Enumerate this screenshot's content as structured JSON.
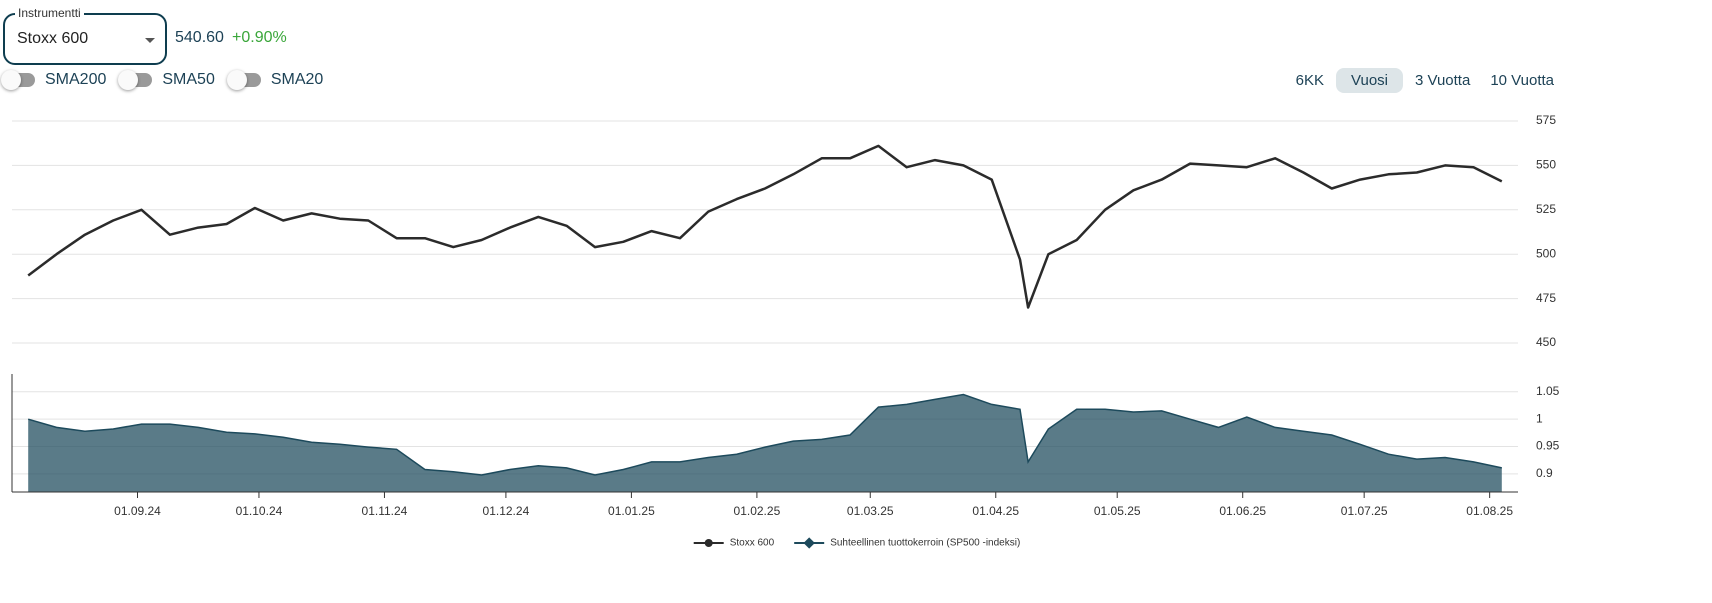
{
  "ui": {
    "instrument_label": "Instrumentti",
    "instrument": "Stoxx 600",
    "price": "540.60",
    "change": "+0.90%",
    "toggles": [
      "SMA200",
      "SMA50",
      "SMA20"
    ],
    "ranges": [
      "6KK",
      "Vuosi",
      "3 Vuotta",
      "10 Vuotta"
    ],
    "active_range": 1
  },
  "chart_data": [
    {
      "type": "line",
      "grid": true,
      "xlim": [
        "01.08.24",
        "08.08.25"
      ],
      "ylim": [
        450,
        575
      ],
      "yticks": [
        450,
        475,
        500,
        525,
        550,
        575
      ],
      "x": [
        "05.08.24",
        "12.08.24",
        "19.08.24",
        "26.08.24",
        "02.09.24",
        "09.09.24",
        "16.09.24",
        "23.09.24",
        "30.09.24",
        "07.10.24",
        "14.10.24",
        "21.10.24",
        "28.10.24",
        "04.11.24",
        "11.11.24",
        "18.11.24",
        "25.11.24",
        "02.12.24",
        "09.12.24",
        "16.12.24",
        "23.12.24",
        "30.12.24",
        "06.01.25",
        "13.01.25",
        "20.01.25",
        "27.01.25",
        "03.02.25",
        "10.02.25",
        "17.02.25",
        "24.02.25",
        "03.03.25",
        "10.03.25",
        "17.03.25",
        "24.03.25",
        "31.03.25",
        "07.04.25",
        "09.04.25",
        "14.04.25",
        "21.04.25",
        "28.04.25",
        "05.05.25",
        "12.05.25",
        "19.05.25",
        "26.05.25",
        "02.06.25",
        "09.06.25",
        "16.06.25",
        "23.06.25",
        "30.06.25",
        "07.07.25",
        "14.07.25",
        "21.07.25",
        "28.07.25",
        "04.08.25"
      ],
      "series": [
        {
          "name": "Stoxx 600",
          "color": "#2b2b2b",
          "values": [
            488,
            500,
            511,
            519,
            525,
            511,
            515,
            517,
            526,
            519,
            523,
            520,
            519,
            509,
            509,
            504,
            508,
            515,
            521,
            516,
            504,
            507,
            513,
            509,
            524,
            531,
            537,
            545,
            554,
            554,
            561,
            549,
            553,
            550,
            542,
            497,
            470,
            500,
            508,
            525,
            536,
            542,
            551,
            550,
            549,
            554,
            546,
            537,
            542,
            545,
            546,
            550,
            549,
            541
          ]
        }
      ]
    },
    {
      "type": "area",
      "grid": true,
      "xlim": [
        "01.08.24",
        "08.08.25"
      ],
      "ylim": [
        0.867,
        1.066
      ],
      "yticks": [
        0.9,
        0.95,
        1,
        1.05
      ],
      "xticks": [
        "01.09.24",
        "01.10.24",
        "01.11.24",
        "01.12.24",
        "01.01.25",
        "01.02.25",
        "01.03.25",
        "01.04.25",
        "01.05.25",
        "01.06.25",
        "01.07.25",
        "01.08.25"
      ],
      "x": [
        "05.08.24",
        "12.08.24",
        "19.08.24",
        "26.08.24",
        "02.09.24",
        "09.09.24",
        "16.09.24",
        "23.09.24",
        "30.09.24",
        "07.10.24",
        "14.10.24",
        "21.10.24",
        "28.10.24",
        "04.11.24",
        "11.11.24",
        "18.11.24",
        "25.11.24",
        "02.12.24",
        "09.12.24",
        "16.12.24",
        "23.12.24",
        "30.12.24",
        "06.01.25",
        "13.01.25",
        "20.01.25",
        "27.01.25",
        "03.02.25",
        "10.02.25",
        "17.02.25",
        "24.02.25",
        "03.03.25",
        "10.03.25",
        "17.03.25",
        "24.03.25",
        "31.03.25",
        "07.04.25",
        "09.04.25",
        "14.04.25",
        "21.04.25",
        "28.04.25",
        "05.05.25",
        "12.05.25",
        "19.05.25",
        "26.05.25",
        "02.06.25",
        "09.06.25",
        "16.06.25",
        "23.06.25",
        "30.06.25",
        "07.07.25",
        "14.07.25",
        "21.07.25",
        "28.07.25",
        "04.08.25"
      ],
      "series": [
        {
          "name": "Suhteellinen tuottokerroin (SP500 -indeksi)",
          "color": "#1d4a5c",
          "values": [
            1,
            0.985,
            0.978,
            0.982,
            0.991,
            0.991,
            0.985,
            0.976,
            0.973,
            0.967,
            0.958,
            0.954,
            0.949,
            0.945,
            0.908,
            0.904,
            0.898,
            0.908,
            0.915,
            0.911,
            0.898,
            0.908,
            0.922,
            0.922,
            0.93,
            0.936,
            0.949,
            0.96,
            0.963,
            0.971,
            1.022,
            1.027,
            1.036,
            1.045,
            1.027,
            1.018,
            0.922,
            0.982,
            1.018,
            1.018,
            1.013,
            1.015,
            1,
            0.985,
            1.004,
            0.985,
            0.978,
            0.971,
            0.954,
            0.936,
            0.927,
            0.93,
            0.922,
            0.911
          ]
        }
      ]
    }
  ]
}
